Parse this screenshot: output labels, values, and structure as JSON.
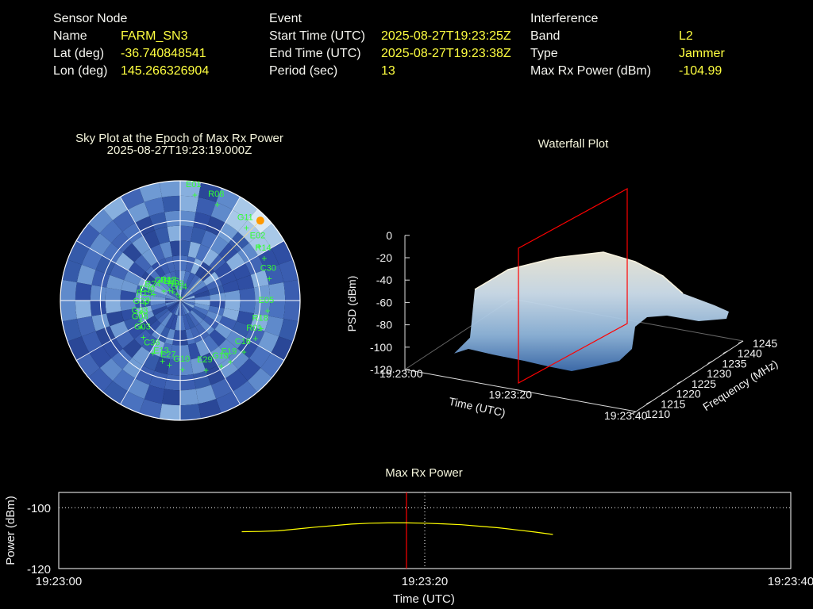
{
  "info": {
    "sensor_node": {
      "heading": "Sensor Node",
      "rows": [
        {
          "label": "Name",
          "value": "FARM_SN3"
        },
        {
          "label": "Lat (deg)",
          "value": "-36.740848541"
        },
        {
          "label": "Lon (deg)",
          "value": "145.266326904"
        }
      ]
    },
    "event": {
      "heading": "Event",
      "rows": [
        {
          "label": "Start Time (UTC)",
          "value": "2025-08-27T19:23:25Z"
        },
        {
          "label": "End Time (UTC)",
          "value": "2025-08-27T19:23:38Z"
        },
        {
          "label": "Period (sec)",
          "value": "13"
        }
      ]
    },
    "interference": {
      "heading": "Interference",
      "rows": [
        {
          "label": "Band",
          "value": "L2"
        },
        {
          "label": "Type",
          "value": "Jammer"
        },
        {
          "label": "Max Rx Power (dBm)",
          "value": "-104.99"
        }
      ]
    }
  },
  "colors": {
    "label": "#f5f5f0",
    "value": "#ffff40",
    "satellite": "#33ff33",
    "marker": "#ff9900",
    "epoch_line": "#ff0000",
    "power_line": "#ffff00",
    "sky_base": "#3355a8"
  },
  "chart_data": [
    {
      "type": "polar-sky",
      "title": "Sky Plot at the Epoch of Max Rx Power",
      "subtitle": "2025-08-27T19:23:19.000Z",
      "satellites": [
        "G14",
        "E19",
        "R15",
        "E02",
        "E27",
        "R17",
        "R18",
        "G08",
        "R08",
        "E29",
        "R24",
        "C30",
        "C36",
        "R09",
        "C16",
        "G33",
        "G11",
        "G10",
        "G04",
        "E05",
        "G03",
        "E01",
        "G18",
        "E30",
        "R14",
        "E13",
        "E26",
        "R01",
        "G23"
      ],
      "marker": {
        "az_deg": 45,
        "el_deg": 5
      }
    },
    {
      "type": "surface-3d",
      "title": "Waterfall Plot",
      "xlabel": "Time (UTC)",
      "x_ticks": [
        "19:23:00",
        "19:23:20",
        "19:23:40"
      ],
      "ylabel": "Frequency (MHz)",
      "y_ticks": [
        1210,
        1215,
        1220,
        1225,
        1230,
        1235,
        1240,
        1245
      ],
      "zlabel": "PSD (dBm)",
      "z_ticks": [
        0,
        -20,
        -40,
        -60,
        -80,
        -100,
        -120
      ],
      "zlim": [
        -120,
        0
      ],
      "plateau_psd_dbm": -30,
      "floor_psd_dbm": -100
    },
    {
      "type": "line",
      "title": "Max Rx Power",
      "xlabel": "Time (UTC)",
      "ylabel": "Power (dBm)",
      "x_ticks": [
        "19:23:00",
        "19:23:20",
        "19:23:40"
      ],
      "xlim_sec": [
        0,
        40
      ],
      "ylim": [
        -120,
        -95
      ],
      "y_ticks": [
        -100,
        -120
      ],
      "epoch_marker_sec": 19,
      "grid": true,
      "series": [
        {
          "x": [
            10,
            11,
            12,
            13,
            14,
            15,
            16,
            17,
            18,
            19,
            20,
            21,
            22,
            23,
            24,
            25,
            26,
            27
          ],
          "y": [
            -107.9,
            -107.8,
            -107.6,
            -107.0,
            -106.4,
            -105.9,
            -105.4,
            -105.1,
            -105.0,
            -105.0,
            -105.1,
            -105.3,
            -105.6,
            -106.1,
            -106.6,
            -107.3,
            -108.0,
            -108.8
          ]
        }
      ]
    }
  ]
}
